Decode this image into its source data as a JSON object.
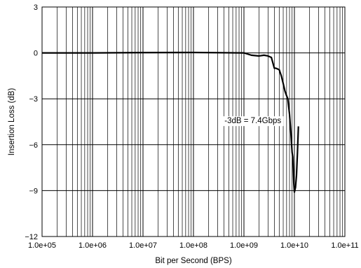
{
  "chart_data": {
    "type": "line",
    "title": "",
    "xlabel": "Bit per Second (BPS)",
    "ylabel": "Insertion Loss (dB)",
    "x_scale": "log",
    "xlim": [
      100000,
      100000000000
    ],
    "ylim": [
      -12,
      3
    ],
    "x_ticks": [
      100000,
      1000000,
      10000000,
      100000000,
      1000000000,
      10000000000,
      100000000000
    ],
    "x_tick_labels": [
      "1.0e+05",
      "1.0e+06",
      "1.0e+07",
      "1.0e+08",
      "1.0e+09",
      "1.0e+10",
      "1.0e+11"
    ],
    "y_ticks": [
      -12,
      -9,
      -6,
      -3,
      0,
      3
    ],
    "y_tick_labels": [
      "−12",
      "−9",
      "−6",
      "−3",
      "0",
      "3"
    ],
    "grid": true,
    "annotation": {
      "text": "-3dB = 7.4Gbps",
      "x": 1500000000,
      "y": -4.6
    },
    "series": [
      {
        "color": "#000000",
        "x": [
          100000,
          1000000,
          10000000,
          100000000,
          1000000000,
          1400000000,
          2000000000,
          2500000000,
          3000000000,
          3500000000,
          4000000000,
          4300000000,
          5000000000,
          5500000000,
          6000000000,
          6500000000,
          7000000000,
          7400000000,
          8000000000,
          8500000000,
          9000000000,
          9300000000,
          9700000000,
          10000000000,
          10500000000,
          11000000000,
          11500000000,
          12000000000
        ],
        "y": [
          0.0,
          0.0,
          0.02,
          0.03,
          0.0,
          -0.15,
          -0.2,
          -0.15,
          -0.2,
          -0.3,
          -1.0,
          -1.0,
          -1.1,
          -1.5,
          -2.0,
          -2.5,
          -2.8,
          -3.0,
          -4.0,
          -5.2,
          -6.5,
          -6.8,
          -8.5,
          -9.1,
          -8.8,
          -8.0,
          -6.5,
          -4.8
        ]
      }
    ]
  }
}
